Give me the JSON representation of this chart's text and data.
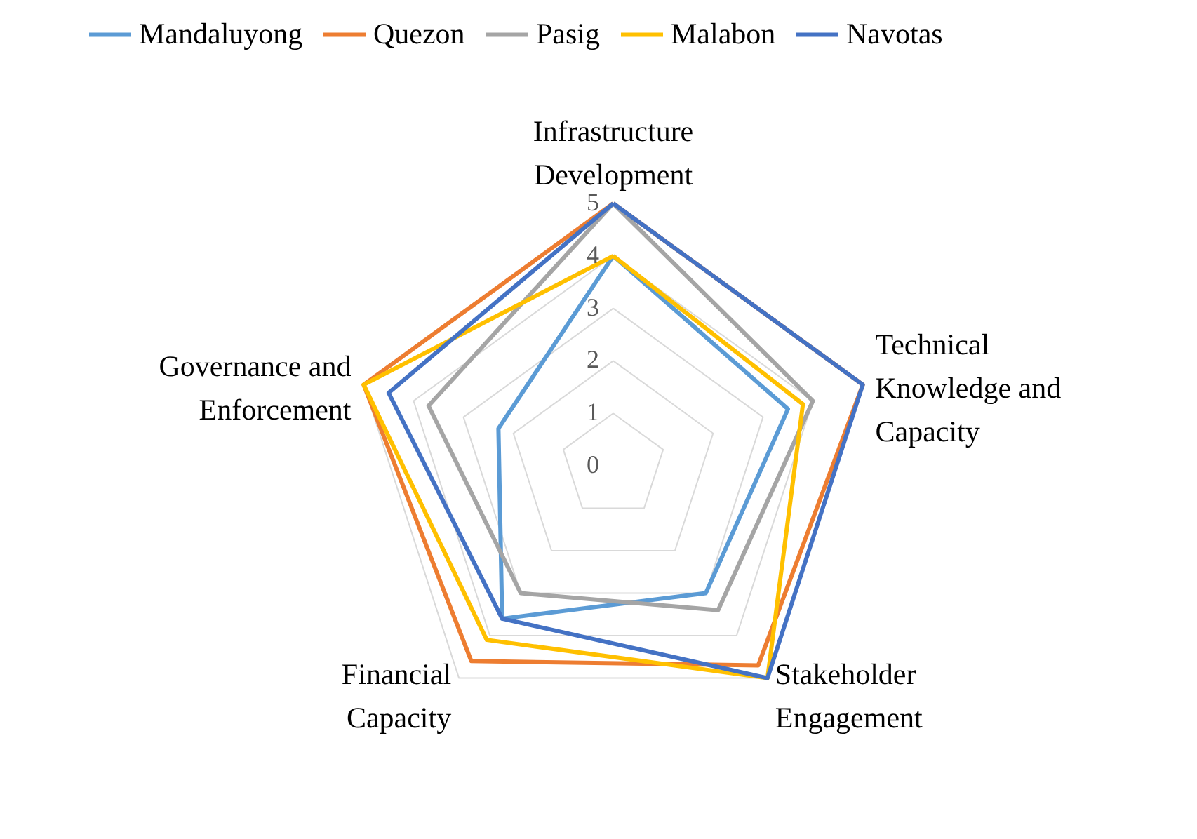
{
  "chart_data": {
    "type": "radar",
    "categories": [
      "Infrastructure Development",
      "Technical Knowledge and Capacity",
      "Stakeholder Engagement",
      "Financial Capacity",
      "Governance and Enforcement"
    ],
    "series": [
      {
        "name": "Mandaluyong",
        "color": "#5b9bd5",
        "values": [
          4,
          3.5,
          3.0,
          3.6,
          2.3
        ]
      },
      {
        "name": "Quezon",
        "color": "#ed7d31",
        "values": [
          5,
          5,
          4.7,
          4.6,
          5
        ]
      },
      {
        "name": "Pasig",
        "color": "#a5a5a5",
        "values": [
          5,
          4,
          3.4,
          3.0,
          3.7
        ]
      },
      {
        "name": "Malabon",
        "color": "#ffc000",
        "values": [
          4,
          3.8,
          5,
          4.1,
          5
        ]
      },
      {
        "name": "Navotas",
        "color": "#4472c4",
        "values": [
          5,
          5,
          5,
          3.6,
          4.5
        ]
      }
    ],
    "ylim": [
      0,
      5
    ],
    "yticks": [
      0,
      1,
      2,
      3,
      4,
      5
    ],
    "grid": true,
    "legend": "top"
  }
}
